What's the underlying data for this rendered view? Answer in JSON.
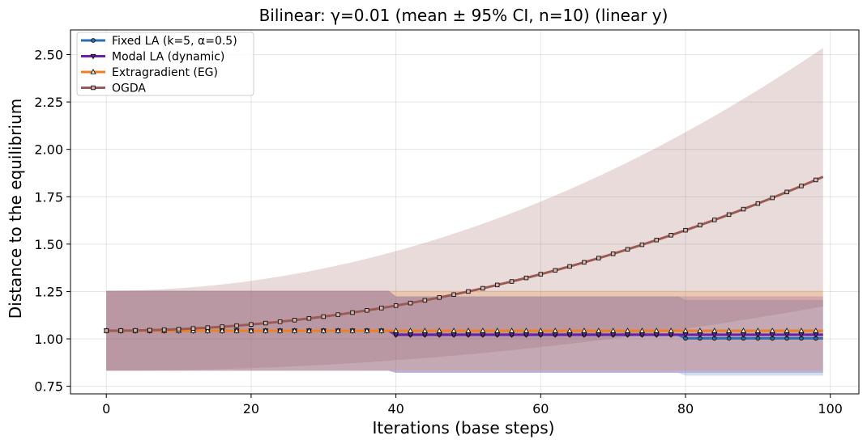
{
  "chart_data": {
    "type": "line",
    "title": "Bilinear: γ=0.01  (mean ± 95% CI, n=10) (linear y)",
    "xlabel": "Iterations (base steps)",
    "ylabel": "Distance to the equilibrium",
    "xlim": [
      -4.95,
      103.95
    ],
    "ylim": [
      0.71,
      2.63
    ],
    "xticks": [
      "0",
      "20",
      "40",
      "60",
      "80",
      "100"
    ],
    "yticks": [
      "0.75",
      "1.00",
      "1.25",
      "1.50",
      "1.75",
      "2.00",
      "2.25",
      "2.50"
    ],
    "grid": true,
    "legend_position": "top-left",
    "series": [
      {
        "name": "Fixed LA (k=5, α=0.5)",
        "color": "#2b6fb3",
        "marker": "circle",
        "segments": [
          {
            "x": [
              0,
              39
            ],
            "mean": 1.043,
            "ci": [
              0.832,
              1.254
            ]
          },
          {
            "x": [
              40,
              79
            ],
            "mean": 1.022,
            "ci": [
              0.821,
              1.224
            ]
          },
          {
            "x": [
              80,
              99
            ],
            "mean": 1.003,
            "ci": [
              0.806,
              1.205
            ]
          }
        ]
      },
      {
        "name": "Modal LA (dynamic)",
        "color": "#6a1fa8",
        "marker": "triangle-down",
        "segments": [
          {
            "x": [
              0,
              39
            ],
            "mean": 1.043,
            "ci": [
              0.832,
              1.254
            ]
          },
          {
            "x": [
              40,
              99
            ],
            "mean": 1.022,
            "ci": [
              0.821,
              1.224
            ]
          }
        ]
      },
      {
        "name": "Extragradient (EG)",
        "color": "#ef8022",
        "marker": "triangle-up",
        "segments": [
          {
            "x": [
              0,
              39
            ],
            "mean": 1.043,
            "ci": [
              0.832,
              1.254
            ]
          },
          {
            "x": [
              40,
              99
            ],
            "mean": 1.043,
            "ci": [
              0.832,
              1.254
            ]
          }
        ]
      },
      {
        "name": "OGDA",
        "color": "#9a5b55",
        "marker": "square",
        "curve": {
          "x_start": 0,
          "x_end": 99,
          "y_start": 1.043,
          "y_end": 1.855,
          "exponent": 2,
          "ci_lower_start": 0.832,
          "ci_lower_end": 1.171,
          "ci_upper_start": 1.254,
          "ci_upper_end": 2.535
        }
      }
    ]
  }
}
